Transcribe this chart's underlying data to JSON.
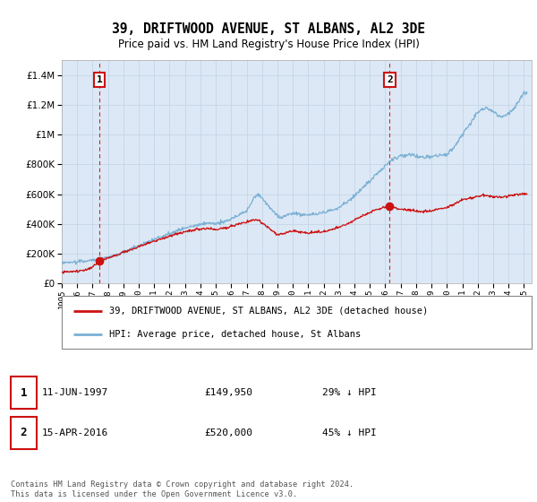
{
  "title": "39, DRIFTWOOD AVENUE, ST ALBANS, AL2 3DE",
  "subtitle": "Price paid vs. HM Land Registry's House Price Index (HPI)",
  "legend_line1": "39, DRIFTWOOD AVENUE, ST ALBANS, AL2 3DE (detached house)",
  "legend_line2": "HPI: Average price, detached house, St Albans",
  "annotation1_date": "11-JUN-1997",
  "annotation1_price": "£149,950",
  "annotation1_hpi": "29% ↓ HPI",
  "annotation1_year": 1997.44,
  "annotation1_value": 149950,
  "annotation2_date": "15-APR-2016",
  "annotation2_price": "£520,000",
  "annotation2_hpi": "45% ↓ HPI",
  "annotation2_year": 2016.29,
  "annotation2_value": 520000,
  "xlabel_years": [
    1995,
    1996,
    1997,
    1998,
    1999,
    2000,
    2001,
    2002,
    2003,
    2004,
    2005,
    2006,
    2007,
    2008,
    2009,
    2010,
    2011,
    2012,
    2013,
    2014,
    2015,
    2016,
    2017,
    2018,
    2019,
    2020,
    2021,
    2022,
    2023,
    2024,
    2025
  ],
  "ylim": [
    0,
    1500000
  ],
  "xlim": [
    1995.0,
    2025.5
  ],
  "fig_bg_color": "#ffffff",
  "plot_bg_color": "#dce8f5",
  "grid_color": "#c8d8e8",
  "hpi_color": "#7ab0d4",
  "sale_color": "#cc1111",
  "dashed_color": "#dd2222",
  "footer": "Contains HM Land Registry data © Crown copyright and database right 2024.\nThis data is licensed under the Open Government Licence v3.0."
}
